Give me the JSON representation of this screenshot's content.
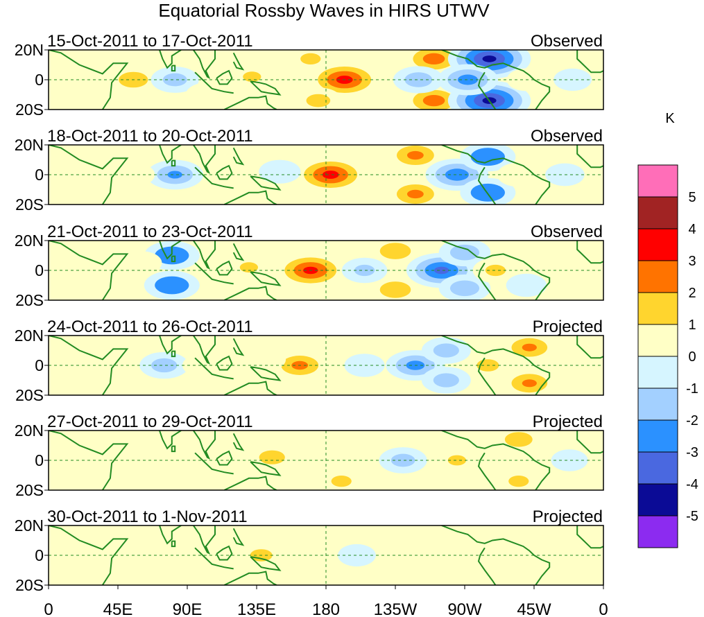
{
  "chart_data": {
    "type": "heatmap",
    "title": "Equatorial Rossby Waves in HIRS UTWV",
    "units": "K",
    "xlabel": "",
    "ylabel": "",
    "x_tick_labels": [
      "0",
      "45E",
      "90E",
      "135E",
      "180",
      "135W",
      "90W",
      "45W",
      "0"
    ],
    "x_ticks_deg_east": [
      0,
      45,
      90,
      135,
      180,
      225,
      270,
      315,
      360
    ],
    "y_tick_labels": [
      "20N",
      "0",
      "20S"
    ],
    "y_ticks_deg": [
      20,
      0,
      -20
    ],
    "xlim": [
      0,
      360
    ],
    "ylim": [
      -20,
      20
    ],
    "colorbar": {
      "labels": [
        "5",
        "4",
        "3",
        "2",
        "1",
        "0",
        "-1",
        "-2",
        "-3",
        "-4",
        "-5"
      ],
      "levels": [
        5,
        4,
        3,
        2,
        1,
        0,
        -1,
        -2,
        -3,
        -4,
        -5
      ],
      "colors": [
        "#ff6eb8",
        "#a12323",
        "#ff0000",
        "#ff7300",
        "#ffd52e",
        "#ffffc6",
        "#d6f5ff",
        "#a3d0ff",
        "#2b91ff",
        "#4a68e0",
        "#0b0b96",
        "#8c2bf0"
      ]
    },
    "panels": [
      {
        "date_range": "15-Oct-2011 to 17-Oct-2011",
        "status": "Observed",
        "features": [
          {
            "lon": 192,
            "lat": 0,
            "value": 3.3
          },
          {
            "lon": 250,
            "lat": 14,
            "value": 2.5
          },
          {
            "lon": 250,
            "lat": -14,
            "value": 2.5
          },
          {
            "lon": 286,
            "lat": 14,
            "value": -4.2
          },
          {
            "lon": 286,
            "lat": -14,
            "value": -4.2
          },
          {
            "lon": 272,
            "lat": 0,
            "value": -2.4
          },
          {
            "lon": 240,
            "lat": 0,
            "value": -1.6
          },
          {
            "lon": 170,
            "lat": 14,
            "value": 1.2
          },
          {
            "lon": 175,
            "lat": -14,
            "value": 1.4
          },
          {
            "lon": 132,
            "lat": 2,
            "value": 1.1
          },
          {
            "lon": 55,
            "lat": 0,
            "value": 1.7
          },
          {
            "lon": 82,
            "lat": 0,
            "value": -1.4
          },
          {
            "lon": 103,
            "lat": -10,
            "value": 1.0
          },
          {
            "lon": 310,
            "lat": 0,
            "value": 0.7
          },
          {
            "lon": 340,
            "lat": 0,
            "value": -0.6
          }
        ]
      },
      {
        "date_range": "18-Oct-2011 to 20-Oct-2011",
        "status": "Observed",
        "features": [
          {
            "lon": 183,
            "lat": 0,
            "value": 3.3
          },
          {
            "lon": 238,
            "lat": 13,
            "value": 2.2
          },
          {
            "lon": 238,
            "lat": -13,
            "value": 2.2
          },
          {
            "lon": 265,
            "lat": 0,
            "value": -2.6
          },
          {
            "lon": 285,
            "lat": 12,
            "value": -2.0
          },
          {
            "lon": 285,
            "lat": -12,
            "value": -2.0
          },
          {
            "lon": 150,
            "lat": 2,
            "value": -0.9
          },
          {
            "lon": 120,
            "lat": 2,
            "value": 0.9
          },
          {
            "lon": 82,
            "lat": 0,
            "value": -2.1
          },
          {
            "lon": 55,
            "lat": 0,
            "value": 1.0
          },
          {
            "lon": 305,
            "lat": 0,
            "value": 1.0
          },
          {
            "lon": 335,
            "lat": 0,
            "value": -0.7
          }
        ]
      },
      {
        "date_range": "21-Oct-2011 to 23-Oct-2011",
        "status": "Observed",
        "features": [
          {
            "lon": 170,
            "lat": 0,
            "value": 3.2
          },
          {
            "lon": 225,
            "lat": 13,
            "value": 1.8
          },
          {
            "lon": 225,
            "lat": -13,
            "value": 1.8
          },
          {
            "lon": 255,
            "lat": 0,
            "value": -3.2
          },
          {
            "lon": 270,
            "lat": 12,
            "value": -1.7
          },
          {
            "lon": 270,
            "lat": -12,
            "value": -1.7
          },
          {
            "lon": 205,
            "lat": 0,
            "value": -1.2
          },
          {
            "lon": 290,
            "lat": 0,
            "value": 1.2
          },
          {
            "lon": 80,
            "lat": 10,
            "value": -2.0
          },
          {
            "lon": 80,
            "lat": -10,
            "value": -2.0
          },
          {
            "lon": 60,
            "lat": 5,
            "value": 0.9
          },
          {
            "lon": 130,
            "lat": 2,
            "value": 1.1
          },
          {
            "lon": 310,
            "lat": -10,
            "value": -0.8
          }
        ]
      },
      {
        "date_range": "24-Oct-2011 to 26-Oct-2011",
        "status": "Projected",
        "features": [
          {
            "lon": 163,
            "lat": 0,
            "value": 2.2
          },
          {
            "lon": 238,
            "lat": 0,
            "value": -2.3
          },
          {
            "lon": 258,
            "lat": 10,
            "value": -1.5
          },
          {
            "lon": 258,
            "lat": -10,
            "value": -1.5
          },
          {
            "lon": 285,
            "lat": 0,
            "value": 1.3
          },
          {
            "lon": 312,
            "lat": 12,
            "value": 2.1
          },
          {
            "lon": 312,
            "lat": -12,
            "value": 2.1
          },
          {
            "lon": 75,
            "lat": 0,
            "value": -1.5
          },
          {
            "lon": 100,
            "lat": 0,
            "value": 0.8
          },
          {
            "lon": 205,
            "lat": 0,
            "value": -0.8
          },
          {
            "lon": 140,
            "lat": 4,
            "value": 1.0
          }
        ]
      },
      {
        "date_range": "27-Oct-2011 to 29-Oct-2011",
        "status": "Projected",
        "features": [
          {
            "lon": 145,
            "lat": 2,
            "value": 1.5
          },
          {
            "lon": 190,
            "lat": -14,
            "value": 1.2
          },
          {
            "lon": 230,
            "lat": 0,
            "value": -1.4
          },
          {
            "lon": 265,
            "lat": 0,
            "value": 1.1
          },
          {
            "lon": 305,
            "lat": 14,
            "value": 1.6
          },
          {
            "lon": 305,
            "lat": -14,
            "value": 1.2
          },
          {
            "lon": 100,
            "lat": 0,
            "value": 0.9
          },
          {
            "lon": 60,
            "lat": 0,
            "value": 0.7
          },
          {
            "lon": 338,
            "lat": 0,
            "value": -0.5
          }
        ]
      },
      {
        "date_range": "30-Oct-2011 to 1-Nov-2011",
        "status": "Projected",
        "features": [
          {
            "lon": 138,
            "lat": 0,
            "value": 1.3
          },
          {
            "lon": 200,
            "lat": 0,
            "value": -0.6
          },
          {
            "lon": 270,
            "lat": 0,
            "value": 0.8
          },
          {
            "lon": 305,
            "lat": 10,
            "value": 0.8
          },
          {
            "lon": 100,
            "lat": -8,
            "value": 0.6
          },
          {
            "lon": 60,
            "lat": 0,
            "value": 0.5
          }
        ]
      }
    ]
  }
}
